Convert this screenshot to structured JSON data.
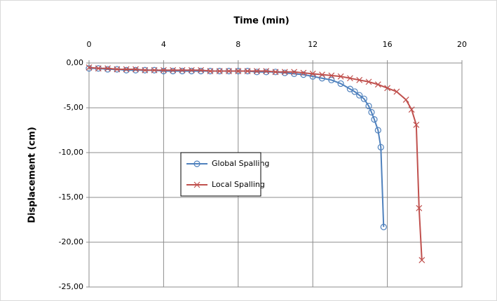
{
  "chart_data": {
    "type": "line",
    "title": "Time (min)",
    "y_label": "Displacement (cm)",
    "xlim": [
      0,
      20
    ],
    "xticks": [
      0,
      4,
      8,
      12,
      16,
      20
    ],
    "ylim": [
      -25,
      0
    ],
    "yticks": [
      {
        "value": 0,
        "label": "0,00"
      },
      {
        "value": -5,
        "label": "-5,00"
      },
      {
        "value": -10,
        "label": "-10,00"
      },
      {
        "value": -15,
        "label": "-15,00"
      },
      {
        "value": -20,
        "label": "-20,00"
      },
      {
        "value": -25,
        "label": "-25,00"
      }
    ],
    "grid": true,
    "series": [
      {
        "name": "Global Spalling",
        "color": "#4f81bd",
        "marker": "circle",
        "x": [
          0,
          0.5,
          1,
          1.5,
          2,
          2.5,
          3,
          3.5,
          4,
          4.5,
          5,
          5.5,
          6,
          6.5,
          7,
          7.5,
          8,
          8.5,
          9,
          9.5,
          10,
          10.5,
          11,
          11.5,
          12,
          12.5,
          13,
          13.5,
          14,
          14.25,
          14.5,
          14.75,
          15,
          15.15,
          15.3,
          15.5,
          15.65,
          15.8
        ],
        "values": [
          -0.6,
          -0.6,
          -0.7,
          -0.7,
          -0.8,
          -0.8,
          -0.8,
          -0.8,
          -0.9,
          -0.9,
          -0.9,
          -0.9,
          -0.9,
          -0.9,
          -0.9,
          -0.9,
          -0.9,
          -0.9,
          -1.0,
          -1.0,
          -1.0,
          -1.1,
          -1.2,
          -1.3,
          -1.5,
          -1.7,
          -1.9,
          -2.3,
          -2.9,
          -3.2,
          -3.6,
          -4.0,
          -4.8,
          -5.5,
          -6.3,
          -7.5,
          -9.4,
          -18.3
        ]
      },
      {
        "name": "Local Spalling",
        "color": "#c0504d",
        "marker": "x",
        "x": [
          0,
          0.5,
          1,
          1.5,
          2,
          2.5,
          3,
          3.5,
          4,
          4.5,
          5,
          5.5,
          6,
          6.5,
          7,
          7.5,
          8,
          8.5,
          9,
          9.5,
          10,
          10.5,
          11,
          11.5,
          12,
          12.5,
          13,
          13.5,
          14,
          14.5,
          15,
          15.5,
          16,
          16.5,
          17,
          17.3,
          17.55,
          17.7,
          17.85
        ],
        "values": [
          -0.5,
          -0.6,
          -0.6,
          -0.7,
          -0.7,
          -0.7,
          -0.8,
          -0.8,
          -0.8,
          -0.8,
          -0.8,
          -0.8,
          -0.8,
          -0.9,
          -0.9,
          -0.9,
          -0.9,
          -0.9,
          -0.9,
          -0.9,
          -1.0,
          -1.0,
          -1.0,
          -1.1,
          -1.2,
          -1.3,
          -1.4,
          -1.5,
          -1.7,
          -1.9,
          -2.1,
          -2.4,
          -2.8,
          -3.2,
          -4.1,
          -5.2,
          -6.9,
          -16.2,
          -22.0
        ]
      }
    ]
  }
}
